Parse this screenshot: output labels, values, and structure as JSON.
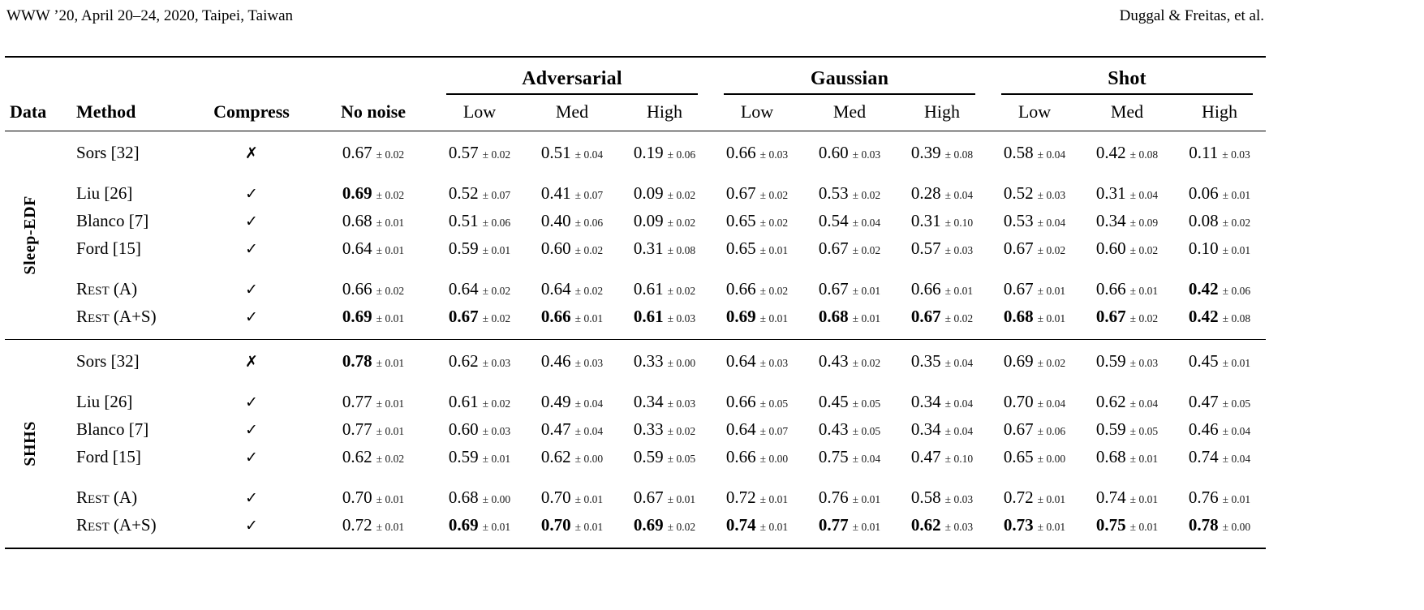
{
  "header": {
    "left": "WWW ’20, April 20–24, 2020, Taipei, Taiwan",
    "right": "Duggal & Freitas, et al."
  },
  "table": {
    "corner_headers": [
      "Data",
      "Method",
      "Compress",
      "No noise"
    ],
    "noise_groups": [
      {
        "label": "Adversarial",
        "levels": [
          "Low",
          "Med",
          "High"
        ]
      },
      {
        "label": "Gaussian",
        "levels": [
          "Low",
          "Med",
          "High"
        ]
      },
      {
        "label": "Shot",
        "levels": [
          "Low",
          "Med",
          "High"
        ]
      }
    ],
    "icons": {
      "compress_true": "✓",
      "compress_false": "✗"
    },
    "sections": [
      {
        "dataset": "Sleep-EDF",
        "groups": [
          [
            {
              "method": "Sors [32]",
              "compress": false,
              "cells": [
                {
                  "v": "0.67",
                  "e": "± 0.02"
                },
                {
                  "v": "0.57",
                  "e": "± 0.02"
                },
                {
                  "v": "0.51",
                  "e": "± 0.04"
                },
                {
                  "v": "0.19",
                  "e": "± 0.06"
                },
                {
                  "v": "0.66",
                  "e": "± 0.03"
                },
                {
                  "v": "0.60",
                  "e": "± 0.03"
                },
                {
                  "v": "0.39",
                  "e": "± 0.08"
                },
                {
                  "v": "0.58",
                  "e": "± 0.04"
                },
                {
                  "v": "0.42",
                  "e": "± 0.08"
                },
                {
                  "v": "0.11",
                  "e": "± 0.03"
                }
              ]
            }
          ],
          [
            {
              "method": "Liu [26]",
              "compress": true,
              "cells": [
                {
                  "v": "0.69",
                  "e": "± 0.02",
                  "b": true
                },
                {
                  "v": "0.52",
                  "e": "± 0.07"
                },
                {
                  "v": "0.41",
                  "e": "± 0.07"
                },
                {
                  "v": "0.09",
                  "e": "± 0.02"
                },
                {
                  "v": "0.67",
                  "e": "± 0.02"
                },
                {
                  "v": "0.53",
                  "e": "± 0.02"
                },
                {
                  "v": "0.28",
                  "e": "± 0.04"
                },
                {
                  "v": "0.52",
                  "e": "± 0.03"
                },
                {
                  "v": "0.31",
                  "e": "± 0.04"
                },
                {
                  "v": "0.06",
                  "e": "± 0.01"
                }
              ]
            },
            {
              "method": "Blanco [7]",
              "compress": true,
              "cells": [
                {
                  "v": "0.68",
                  "e": "± 0.01"
                },
                {
                  "v": "0.51",
                  "e": "± 0.06"
                },
                {
                  "v": "0.40",
                  "e": "± 0.06"
                },
                {
                  "v": "0.09",
                  "e": "± 0.02"
                },
                {
                  "v": "0.65",
                  "e": "± 0.02"
                },
                {
                  "v": "0.54",
                  "e": "± 0.04"
                },
                {
                  "v": "0.31",
                  "e": "± 0.10"
                },
                {
                  "v": "0.53",
                  "e": "± 0.04"
                },
                {
                  "v": "0.34",
                  "e": "± 0.09"
                },
                {
                  "v": "0.08",
                  "e": "± 0.02"
                }
              ]
            },
            {
              "method": "Ford [15]",
              "compress": true,
              "cells": [
                {
                  "v": "0.64",
                  "e": "± 0.01"
                },
                {
                  "v": "0.59",
                  "e": "± 0.01"
                },
                {
                  "v": "0.60",
                  "e": "± 0.02"
                },
                {
                  "v": "0.31",
                  "e": "± 0.08"
                },
                {
                  "v": "0.65",
                  "e": "± 0.01"
                },
                {
                  "v": "0.67",
                  "e": "± 0.02"
                },
                {
                  "v": "0.57",
                  "e": "± 0.03"
                },
                {
                  "v": "0.67",
                  "e": "± 0.02"
                },
                {
                  "v": "0.60",
                  "e": "± 0.02"
                },
                {
                  "v": "0.10",
                  "e": "± 0.01"
                }
              ]
            }
          ],
          [
            {
              "method": "Rest (A)",
              "sc": true,
              "compress": true,
              "cells": [
                {
                  "v": "0.66",
                  "e": "± 0.02"
                },
                {
                  "v": "0.64",
                  "e": "± 0.02"
                },
                {
                  "v": "0.64",
                  "e": "± 0.02"
                },
                {
                  "v": "0.61",
                  "e": "± 0.02"
                },
                {
                  "v": "0.66",
                  "e": "± 0.02"
                },
                {
                  "v": "0.67",
                  "e": "± 0.01"
                },
                {
                  "v": "0.66",
                  "e": "± 0.01"
                },
                {
                  "v": "0.67",
                  "e": "± 0.01"
                },
                {
                  "v": "0.66",
                  "e": "± 0.01"
                },
                {
                  "v": "0.42",
                  "e": "± 0.06",
                  "b": true
                }
              ]
            },
            {
              "method": "Rest (A+S)",
              "sc": true,
              "compress": true,
              "cells": [
                {
                  "v": "0.69",
                  "e": "± 0.01",
                  "b": true
                },
                {
                  "v": "0.67",
                  "e": "± 0.02",
                  "b": true
                },
                {
                  "v": "0.66",
                  "e": "± 0.01",
                  "b": true
                },
                {
                  "v": "0.61",
                  "e": "± 0.03",
                  "b": true
                },
                {
                  "v": "0.69",
                  "e": "± 0.01",
                  "b": true
                },
                {
                  "v": "0.68",
                  "e": "± 0.01",
                  "b": true
                },
                {
                  "v": "0.67",
                  "e": "± 0.02",
                  "b": true
                },
                {
                  "v": "0.68",
                  "e": "± 0.01",
                  "b": true
                },
                {
                  "v": "0.67",
                  "e": "± 0.02",
                  "b": true
                },
                {
                  "v": "0.42",
                  "e": "± 0.08",
                  "b": true
                }
              ]
            }
          ]
        ]
      },
      {
        "dataset": "SHHS",
        "groups": [
          [
            {
              "method": "Sors [32]",
              "compress": false,
              "cells": [
                {
                  "v": "0.78",
                  "e": "± 0.01",
                  "b": true
                },
                {
                  "v": "0.62",
                  "e": "± 0.03"
                },
                {
                  "v": "0.46",
                  "e": "± 0.03"
                },
                {
                  "v": "0.33",
                  "e": "± 0.00"
                },
                {
                  "v": "0.64",
                  "e": "± 0.03"
                },
                {
                  "v": "0.43",
                  "e": "± 0.02"
                },
                {
                  "v": "0.35",
                  "e": "± 0.04"
                },
                {
                  "v": "0.69",
                  "e": "± 0.02"
                },
                {
                  "v": "0.59",
                  "e": "± 0.03"
                },
                {
                  "v": "0.45",
                  "e": "± 0.01"
                }
              ]
            }
          ],
          [
            {
              "method": "Liu [26]",
              "compress": true,
              "cells": [
                {
                  "v": "0.77",
                  "e": "± 0.01"
                },
                {
                  "v": "0.61",
                  "e": "± 0.02"
                },
                {
                  "v": "0.49",
                  "e": "± 0.04"
                },
                {
                  "v": "0.34",
                  "e": "± 0.03"
                },
                {
                  "v": "0.66",
                  "e": "± 0.05"
                },
                {
                  "v": "0.45",
                  "e": "± 0.05"
                },
                {
                  "v": "0.34",
                  "e": "± 0.04"
                },
                {
                  "v": "0.70",
                  "e": "± 0.04"
                },
                {
                  "v": "0.62",
                  "e": "± 0.04"
                },
                {
                  "v": "0.47",
                  "e": "± 0.05"
                }
              ]
            },
            {
              "method": "Blanco [7]",
              "compress": true,
              "cells": [
                {
                  "v": "0.77",
                  "e": "± 0.01"
                },
                {
                  "v": "0.60",
                  "e": "± 0.03"
                },
                {
                  "v": "0.47",
                  "e": "± 0.04"
                },
                {
                  "v": "0.33",
                  "e": "± 0.02"
                },
                {
                  "v": "0.64",
                  "e": "± 0.07"
                },
                {
                  "v": "0.43",
                  "e": "± 0.05"
                },
                {
                  "v": "0.34",
                  "e": "± 0.04"
                },
                {
                  "v": "0.67",
                  "e": "± 0.06"
                },
                {
                  "v": "0.59",
                  "e": "± 0.05"
                },
                {
                  "v": "0.46",
                  "e": "± 0.04"
                }
              ]
            },
            {
              "method": "Ford [15]",
              "compress": true,
              "cells": [
                {
                  "v": "0.62",
                  "e": "± 0.02"
                },
                {
                  "v": "0.59",
                  "e": "± 0.01"
                },
                {
                  "v": "0.62",
                  "e": "± 0.00"
                },
                {
                  "v": "0.59",
                  "e": "± 0.05"
                },
                {
                  "v": "0.66",
                  "e": "± 0.00"
                },
                {
                  "v": "0.75",
                  "e": "± 0.04"
                },
                {
                  "v": "0.47",
                  "e": "± 0.10"
                },
                {
                  "v": "0.65",
                  "e": "± 0.00"
                },
                {
                  "v": "0.68",
                  "e": "± 0.01"
                },
                {
                  "v": "0.74",
                  "e": "± 0.04"
                }
              ]
            }
          ],
          [
            {
              "method": "Rest (A)",
              "sc": true,
              "compress": true,
              "cells": [
                {
                  "v": "0.70",
                  "e": "± 0.01"
                },
                {
                  "v": "0.68",
                  "e": "± 0.00"
                },
                {
                  "v": "0.70",
                  "e": "± 0.01"
                },
                {
                  "v": "0.67",
                  "e": "± 0.01"
                },
                {
                  "v": "0.72",
                  "e": "± 0.01"
                },
                {
                  "v": "0.76",
                  "e": "± 0.01"
                },
                {
                  "v": "0.58",
                  "e": "± 0.03"
                },
                {
                  "v": "0.72",
                  "e": "± 0.01"
                },
                {
                  "v": "0.74",
                  "e": "± 0.01"
                },
                {
                  "v": "0.76",
                  "e": "± 0.01"
                }
              ]
            },
            {
              "method": "Rest (A+S)",
              "sc": true,
              "compress": true,
              "cells": [
                {
                  "v": "0.72",
                  "e": "± 0.01"
                },
                {
                  "v": "0.69",
                  "e": "± 0.01",
                  "b": true
                },
                {
                  "v": "0.70",
                  "e": "± 0.01",
                  "b": true
                },
                {
                  "v": "0.69",
                  "e": "± 0.02",
                  "b": true
                },
                {
                  "v": "0.74",
                  "e": "± 0.01",
                  "b": true
                },
                {
                  "v": "0.77",
                  "e": "± 0.01",
                  "b": true
                },
                {
                  "v": "0.62",
                  "e": "± 0.03",
                  "b": true
                },
                {
                  "v": "0.73",
                  "e": "± 0.01",
                  "b": true
                },
                {
                  "v": "0.75",
                  "e": "± 0.01",
                  "b": true
                },
                {
                  "v": "0.78",
                  "e": "± 0.00",
                  "b": true
                }
              ]
            }
          ]
        ]
      }
    ]
  }
}
